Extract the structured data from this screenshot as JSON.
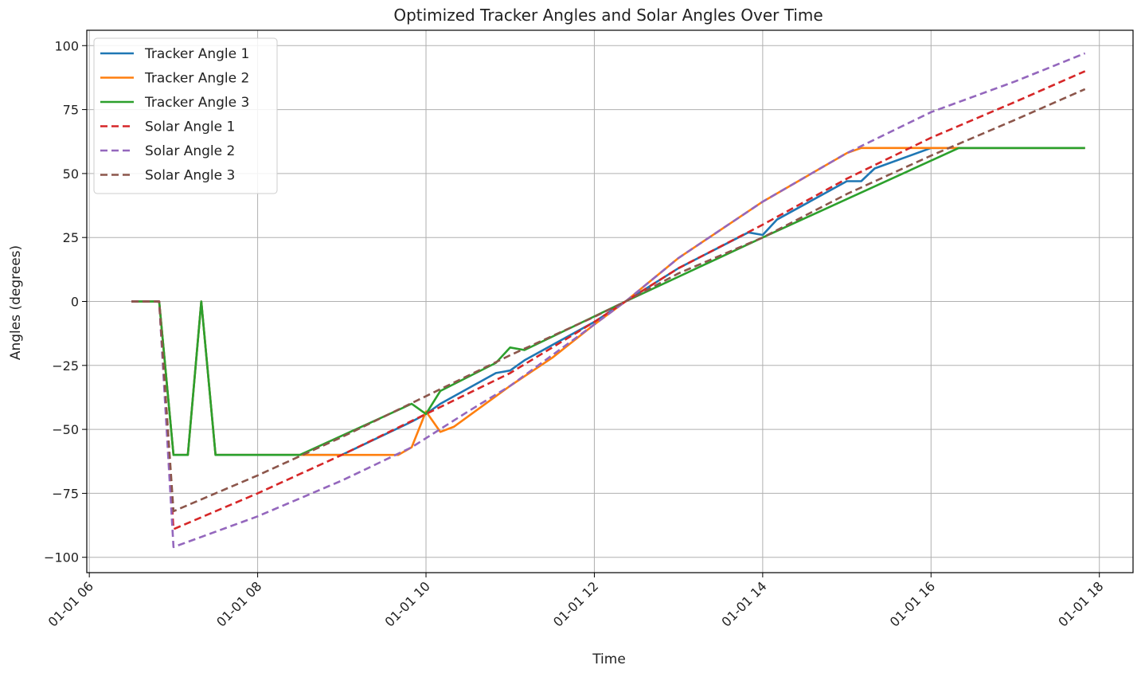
{
  "chart_data": {
    "type": "line",
    "title": "Optimized Tracker Angles and Solar Angles Over Time",
    "xlabel": "Time",
    "ylabel": "Angles (degrees)",
    "x_ticks": [
      "01-01 06",
      "01-01 08",
      "01-01 10",
      "01-01 12",
      "01-01 14",
      "01-01 16",
      "01-01 18"
    ],
    "x_tick_hours": [
      6,
      8,
      10,
      12,
      14,
      16,
      18
    ],
    "y_ticks": [
      100,
      75,
      50,
      25,
      0,
      -25,
      -50,
      -75,
      -100
    ],
    "y_tick_labels": [
      "100",
      "75",
      "50",
      "25",
      "0",
      "−25",
      "−50",
      "−75",
      "−100"
    ],
    "xlim": [
      5.97,
      18.4
    ],
    "ylim": [
      -106,
      106
    ],
    "grid": true,
    "legend_position": "top-left",
    "series": [
      {
        "name": "Tracker Angle 1",
        "color": "#1f77b4",
        "dash": "solid",
        "x": [
          6.5,
          6.83,
          7.0,
          7.17,
          7.33,
          7.5,
          8.5,
          9.0,
          9.83,
          10.0,
          10.17,
          10.83,
          11.0,
          11.17,
          12.0,
          12.37,
          13.0,
          13.83,
          14.0,
          14.17,
          15.0,
          15.17,
          15.33,
          16.0,
          16.33,
          17.83
        ],
        "y": [
          0,
          0,
          -60,
          -60,
          0,
          -60,
          -60,
          -60,
          -47,
          -44,
          -40,
          -28,
          -27,
          -23,
          -8,
          0,
          13,
          27,
          26,
          32,
          47,
          47,
          52,
          60,
          60,
          60
        ]
      },
      {
        "name": "Tracker Angle 2",
        "color": "#ff7f0e",
        "dash": "solid",
        "x": [
          6.5,
          6.83,
          7.0,
          7.17,
          7.33,
          7.5,
          8.5,
          9.0,
          9.67,
          9.83,
          10.0,
          10.17,
          10.33,
          11.0,
          11.5,
          12.0,
          12.37,
          13.0,
          14.0,
          15.0,
          15.17,
          16.0,
          16.33,
          17.83
        ],
        "y": [
          0,
          0,
          -60,
          -60,
          0,
          -60,
          -60,
          -60,
          -60,
          -57,
          -43,
          -51,
          -49,
          -33,
          -22,
          -9,
          0,
          17,
          39,
          58,
          60,
          60,
          60,
          60
        ]
      },
      {
        "name": "Tracker Angle 3",
        "color": "#2ca02c",
        "dash": "solid",
        "x": [
          6.5,
          6.83,
          7.0,
          7.17,
          7.33,
          7.5,
          8.5,
          9.83,
          10.0,
          10.17,
          10.83,
          11.0,
          11.17,
          12.37,
          14.0,
          16.33,
          17.83
        ],
        "y": [
          0,
          0,
          -60,
          -60,
          0,
          -60,
          -60,
          -40,
          -44,
          -35,
          -24,
          -18,
          -19,
          0,
          25,
          60,
          60
        ]
      },
      {
        "name": "Solar Angle 1",
        "color": "#d62728",
        "dash": "dashed",
        "x": [
          6.5,
          6.83,
          7.0,
          8.0,
          9.0,
          10.0,
          11.0,
          12.0,
          12.37,
          13.0,
          14.0,
          15.0,
          16.0,
          17.0,
          17.83
        ],
        "y": [
          0,
          0,
          -89,
          -75,
          -60,
          -44,
          -28,
          -8,
          0,
          13,
          30,
          48,
          64,
          78,
          90
        ]
      },
      {
        "name": "Solar Angle 2",
        "color": "#9467bd",
        "dash": "dashed",
        "x": [
          6.5,
          6.83,
          7.0,
          8.0,
          9.0,
          9.83,
          10.5,
          11.0,
          12.0,
          12.37,
          13.0,
          14.0,
          15.0,
          16.0,
          17.0,
          17.83
        ],
        "y": [
          0,
          0,
          -96,
          -84,
          -70,
          -57,
          -43,
          -33,
          -9,
          0,
          17,
          39,
          58,
          74,
          86,
          97
        ]
      },
      {
        "name": "Solar Angle 3",
        "color": "#8c564b",
        "dash": "dashed",
        "x": [
          6.5,
          6.83,
          7.0,
          8.0,
          9.0,
          10.0,
          11.0,
          12.0,
          12.37,
          13.0,
          14.0,
          15.0,
          16.0,
          17.0,
          17.83
        ],
        "y": [
          0,
          0,
          -82,
          -68,
          -53,
          -37,
          -21,
          -6,
          0,
          11,
          25,
          42,
          57,
          71,
          83
        ]
      }
    ]
  }
}
